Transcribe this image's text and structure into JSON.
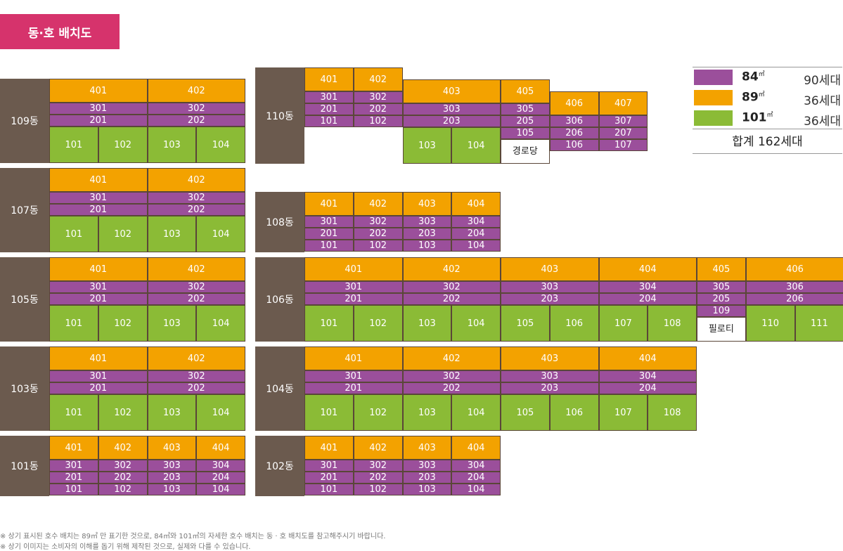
{
  "title": "동·호 배치도",
  "legend": {
    "items": [
      {
        "area": "84",
        "unit": "㎡",
        "count": "90세대",
        "color": "#9b4f9b"
      },
      {
        "area": "89",
        "unit": "㎡",
        "count": "36세대",
        "color": "#f3a200"
      },
      {
        "area": "101",
        "unit": "㎡",
        "count": "36세대",
        "color": "#8bbb36"
      }
    ],
    "total": "합계 162세대"
  },
  "buildings": {
    "b109": {
      "label": "109동",
      "f4": [
        "401",
        "402"
      ],
      "f3": [
        "301",
        "302"
      ],
      "f2": [
        "201",
        "202"
      ],
      "f1": [
        "101",
        "102",
        "103",
        "104"
      ]
    },
    "b107": {
      "label": "107동",
      "f4": [
        "401",
        "402"
      ],
      "f3": [
        "301",
        "302"
      ],
      "f2": [
        "201",
        "202"
      ],
      "f1": [
        "101",
        "102",
        "103",
        "104"
      ]
    },
    "b105": {
      "label": "105동",
      "f4": [
        "401",
        "402"
      ],
      "f3": [
        "301",
        "302"
      ],
      "f2": [
        "201",
        "202"
      ],
      "f1": [
        "101",
        "102",
        "103",
        "104"
      ]
    },
    "b103": {
      "label": "103동",
      "f4": [
        "401",
        "402"
      ],
      "f3": [
        "301",
        "302"
      ],
      "f2": [
        "201",
        "202"
      ],
      "f1": [
        "101",
        "102",
        "103",
        "104"
      ]
    },
    "b101": {
      "label": "101동",
      "f4": [
        "401",
        "402",
        "403",
        "404"
      ],
      "f3": [
        "301",
        "302",
        "303",
        "304"
      ],
      "f2": [
        "201",
        "202",
        "203",
        "204"
      ],
      "f1": [
        "101",
        "102",
        "103",
        "104"
      ]
    },
    "b110": {
      "label": "110동",
      "f4": [
        "401",
        "402",
        "403",
        "405",
        "406",
        "407"
      ],
      "f3": [
        "301",
        "302",
        "303",
        "305",
        "306",
        "307"
      ],
      "f2": [
        "201",
        "202",
        "203",
        "205",
        "206",
        "207"
      ],
      "f1": [
        "101",
        "102",
        "103",
        "104",
        "105",
        "106",
        "107"
      ],
      "amenity": "경로당"
    },
    "b108": {
      "label": "108동",
      "f4": [
        "401",
        "402",
        "403",
        "404"
      ],
      "f3": [
        "301",
        "302",
        "303",
        "304"
      ],
      "f2": [
        "201",
        "202",
        "203",
        "204"
      ],
      "f1": [
        "101",
        "102",
        "103",
        "104"
      ]
    },
    "b106": {
      "label": "106동",
      "f4": [
        "401",
        "402",
        "403",
        "404",
        "405",
        "406"
      ],
      "f3": [
        "301",
        "302",
        "303",
        "304",
        "305",
        "306"
      ],
      "f2": [
        "201",
        "202",
        "203",
        "204",
        "205",
        "206"
      ],
      "f1": [
        "101",
        "102",
        "103",
        "104",
        "105",
        "106",
        "107",
        "108",
        "109",
        "110",
        "111"
      ],
      "pilotis": "필로티"
    },
    "b104": {
      "label": "104동",
      "f4": [
        "401",
        "402",
        "403",
        "404"
      ],
      "f3": [
        "301",
        "302",
        "303",
        "304"
      ],
      "f2": [
        "201",
        "202",
        "203",
        "204"
      ],
      "f1": [
        "101",
        "102",
        "103",
        "104",
        "105",
        "106",
        "107",
        "108"
      ]
    },
    "b102": {
      "label": "102동",
      "f4": [
        "401",
        "402",
        "403",
        "404"
      ],
      "f3": [
        "301",
        "302",
        "303",
        "304"
      ],
      "f2": [
        "201",
        "202",
        "203",
        "204"
      ],
      "f1": [
        "101",
        "102",
        "103",
        "104"
      ]
    }
  },
  "notes": [
    "※ 상기 표시된 호수 배치는 89㎡ 만 표기한 것으로, 84㎡와 101㎡의 자세한 호수 배치는 동 · 호 배치도를 참고해주시기 바랍니다.",
    "※ 상기 이미지는 소비자의 이해를 돕기 위해 제작된 것으로, 실제와 다를 수 있습니다."
  ]
}
